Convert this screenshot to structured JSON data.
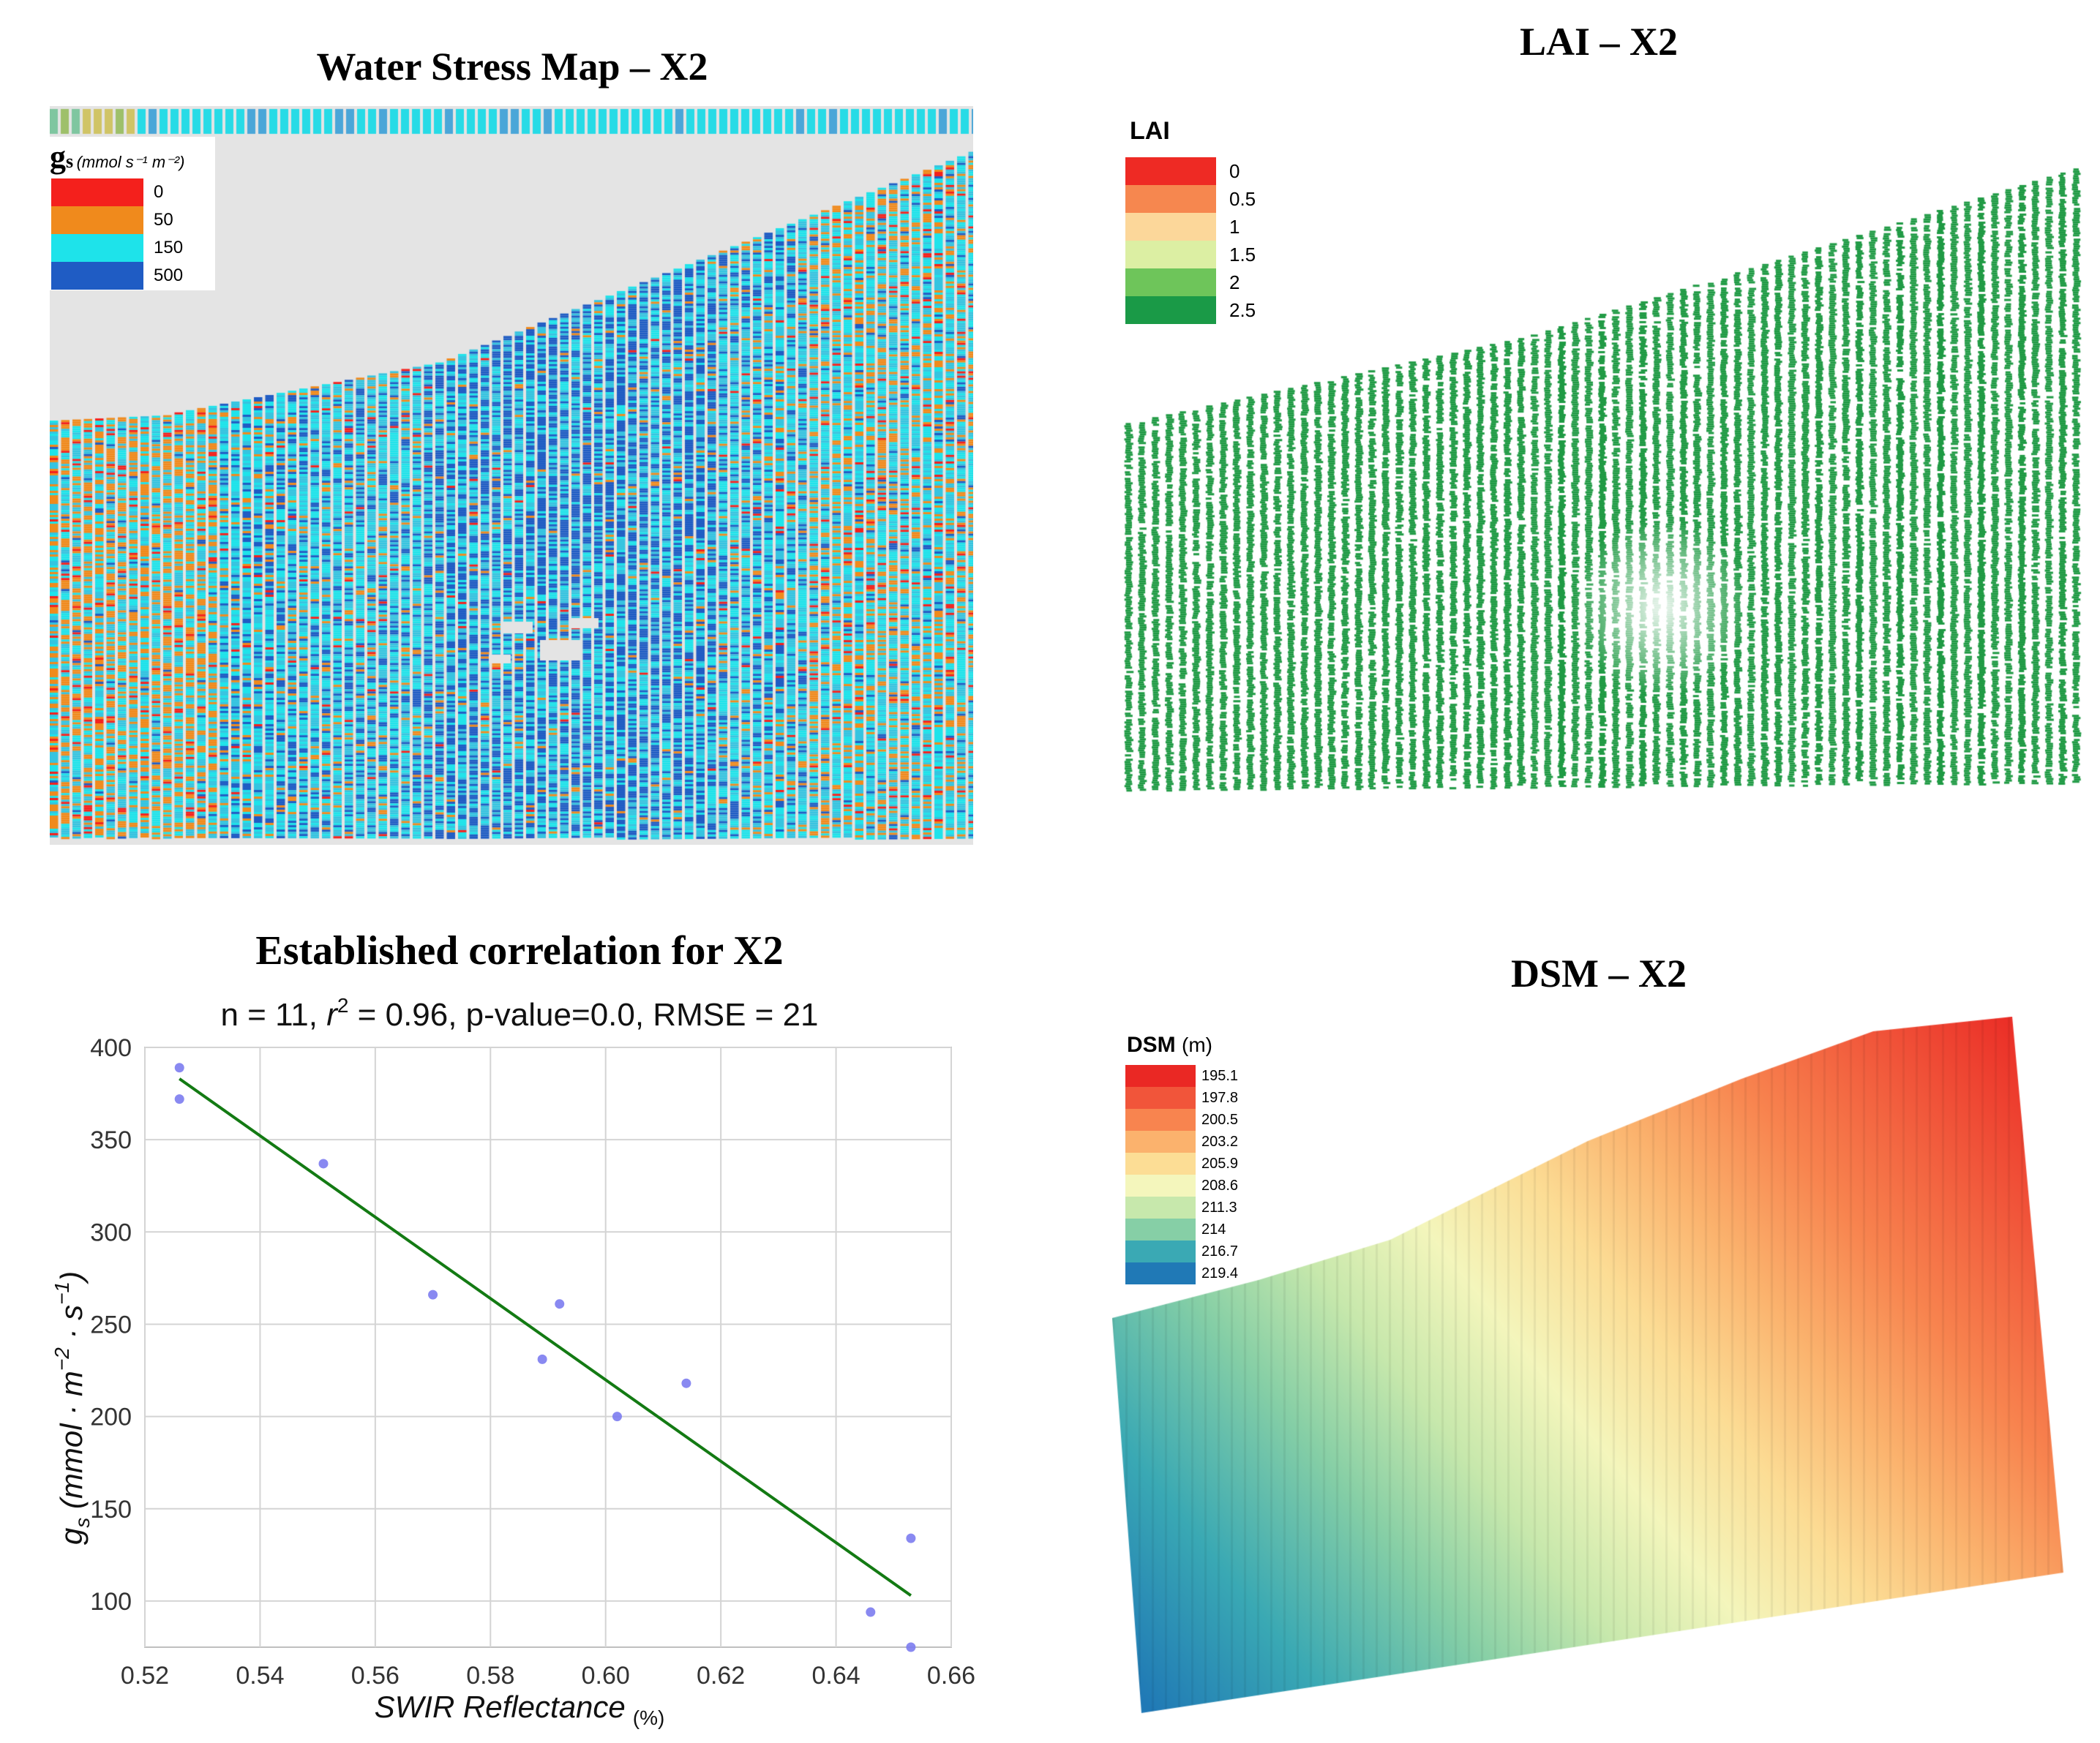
{
  "panels": {
    "water_stress": {
      "title": "Water Stress Map – X2",
      "legend": {
        "symbol": "g",
        "subscript": "s",
        "unit": "(mmol s⁻¹ m⁻²)",
        "items": [
          {
            "label": "0",
            "color": "#f4201c"
          },
          {
            "label": "50",
            "color": "#f08a1c"
          },
          {
            "label": "150",
            "color": "#1ee3ea"
          },
          {
            "label": "500",
            "color": "#1f5cc4"
          }
        ]
      }
    },
    "lai": {
      "title": "LAI – X2",
      "legend": {
        "title": "LAI",
        "items": [
          {
            "label": "0",
            "color": "#ee2a24"
          },
          {
            "label": "0.5",
            "color": "#f6874f"
          },
          {
            "label": "1",
            "color": "#fcd79a"
          },
          {
            "label": "1.5",
            "color": "#dcefa3"
          },
          {
            "label": "2",
            "color": "#6ec55a"
          },
          {
            "label": "2.5",
            "color": "#1a9a47"
          }
        ]
      },
      "vine_color": "#1f9a44"
    },
    "dsm": {
      "title": "DSM – X2",
      "legend": {
        "title": "DSM",
        "unit": "(m)",
        "items": [
          {
            "label": "195.1",
            "color": "#ea2824"
          },
          {
            "label": "197.8",
            "color": "#f1553a"
          },
          {
            "label": "200.5",
            "color": "#f8844f"
          },
          {
            "label": "203.2",
            "color": "#fbb26d"
          },
          {
            "label": "205.9",
            "color": "#fcdd95"
          },
          {
            "label": "208.6",
            "color": "#f4f6bc"
          },
          {
            "label": "211.3",
            "color": "#c7e8ac"
          },
          {
            "label": "214",
            "color": "#86cfa6"
          },
          {
            "label": "216.7",
            "color": "#3aa9b4"
          },
          {
            "label": "219.4",
            "color": "#2079b6"
          }
        ]
      }
    }
  },
  "chart_data": {
    "type": "scatter",
    "title": "Established correlation for X2",
    "subtitle_parts": [
      "n = 11, ",
      "r",
      "2",
      " = 0.96, p-value=0.0, RMSE = 21"
    ],
    "xlabel": "SWIR Reflectance",
    "xlabel_unit": "(%)",
    "ylabel_parts": [
      "g",
      "s",
      " (mmol · m",
      "−2",
      " · s",
      "−1",
      ")"
    ],
    "xlim": [
      0.52,
      0.66
    ],
    "ylim": [
      75,
      400
    ],
    "xticks": [
      0.52,
      0.54,
      0.56,
      0.58,
      0.6,
      0.62,
      0.64,
      0.66
    ],
    "xtick_labels": [
      "0.52",
      "0.54",
      "0.56",
      "0.58",
      "0.60",
      "0.62",
      "0.64",
      "0.66"
    ],
    "yticks": [
      100,
      150,
      200,
      250,
      300,
      350,
      400
    ],
    "ytick_labels": [
      "100",
      "150",
      "200",
      "250",
      "300",
      "350",
      "400"
    ],
    "grid": true,
    "point_color": "#7c7cf0",
    "line_color": "#137a13",
    "points": [
      {
        "x": 0.526,
        "y": 389
      },
      {
        "x": 0.526,
        "y": 372
      },
      {
        "x": 0.551,
        "y": 337
      },
      {
        "x": 0.57,
        "y": 266
      },
      {
        "x": 0.589,
        "y": 231
      },
      {
        "x": 0.592,
        "y": 261
      },
      {
        "x": 0.602,
        "y": 200
      },
      {
        "x": 0.614,
        "y": 218
      },
      {
        "x": 0.646,
        "y": 94
      },
      {
        "x": 0.653,
        "y": 134
      },
      {
        "x": 0.653,
        "y": 75
      }
    ],
    "fit_line": [
      {
        "x": 0.526,
        "y": 383
      },
      {
        "x": 0.653,
        "y": 103
      }
    ]
  }
}
